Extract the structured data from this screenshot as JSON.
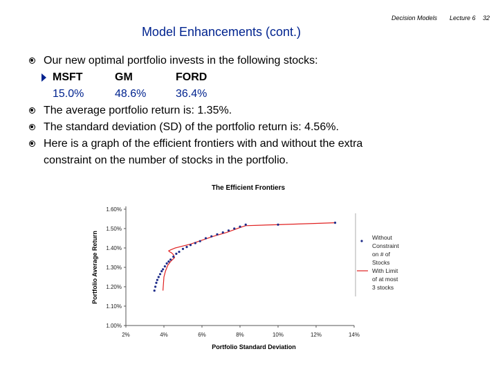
{
  "header": {
    "course": "Decision Models",
    "lecture": "Lecture 6",
    "page": "32"
  },
  "title": "Model Enhancements (cont.)",
  "bullets": [
    "Our new optimal portfolio invests in the following stocks:",
    "The average portfolio return is: 1.35%.",
    "The standard deviation (SD) of the portfolio return is: 4.56%.",
    "Here is a graph of the efficient frontiers with and without the extra",
    "constraint on the number of stocks in the portfolio."
  ],
  "stocks": {
    "names": [
      "MSFT",
      "GM",
      "FORD"
    ],
    "weights": [
      "15.0%",
      "48.6%",
      "36.4%"
    ]
  },
  "colors": {
    "title": "#00238f",
    "without_constraint": "#1f2d8a",
    "with_limit": "#e02020"
  },
  "chart_data": {
    "type": "line",
    "title": "The Efficient Frontiers",
    "xlabel": "Portfolio Standard Deviation",
    "ylabel": "Portfolio Average Return",
    "xlim": [
      2,
      14
    ],
    "ylim": [
      1.0,
      1.6
    ],
    "x_ticks": [
      "2%",
      "4%",
      "6%",
      "8%",
      "10%",
      "12%",
      "14%"
    ],
    "y_ticks": [
      "1.00%",
      "1.10%",
      "1.20%",
      "1.30%",
      "1.40%",
      "1.50%",
      "1.60%"
    ],
    "legend_position": "right",
    "series": [
      {
        "name": "Without Constraint on # of Stocks",
        "style": "markers",
        "x": [
          3.5,
          3.55,
          3.6,
          3.65,
          3.72,
          3.8,
          3.88,
          3.95,
          4.05,
          4.15,
          4.25,
          4.35,
          4.5,
          4.65,
          4.8,
          5.0,
          5.2,
          5.4,
          5.65,
          5.9,
          6.2,
          6.5,
          6.8,
          7.1,
          7.4,
          7.7,
          8.0,
          8.3,
          10.0,
          13.0
        ],
        "y": [
          1.18,
          1.2,
          1.22,
          1.235,
          1.25,
          1.265,
          1.28,
          1.29,
          1.305,
          1.32,
          1.33,
          1.34,
          1.355,
          1.37,
          1.38,
          1.395,
          1.405,
          1.415,
          1.425,
          1.435,
          1.45,
          1.46,
          1.47,
          1.48,
          1.49,
          1.5,
          1.51,
          1.52,
          1.52,
          1.53
        ]
      },
      {
        "name": "With Limit of at most 3 stocks",
        "style": "line",
        "x": [
          3.95,
          4.0,
          4.08,
          4.2,
          4.35,
          4.5,
          4.56,
          4.5,
          4.4,
          4.3,
          4.25,
          4.35,
          4.6,
          5.0,
          5.4,
          6.0,
          6.6,
          7.3,
          8.0,
          8.3,
          10.0,
          13.0
        ],
        "y": [
          1.18,
          1.25,
          1.28,
          1.31,
          1.33,
          1.345,
          1.35,
          1.365,
          1.375,
          1.38,
          1.385,
          1.39,
          1.4,
          1.41,
          1.42,
          1.44,
          1.46,
          1.48,
          1.505,
          1.515,
          1.52,
          1.53
        ]
      }
    ]
  }
}
